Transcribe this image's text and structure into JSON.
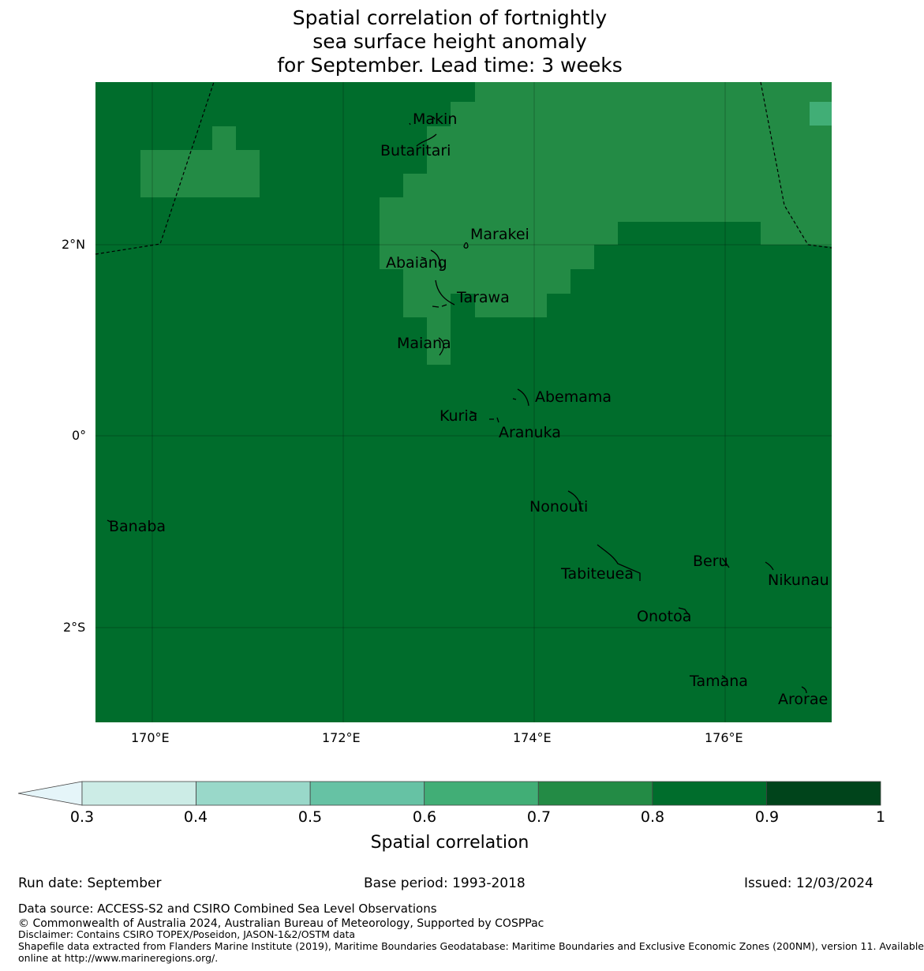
{
  "title_lines": [
    "Spatial correlation of fortnightly",
    "sea surface height anomaly",
    "for September. Lead time: 3 weeks"
  ],
  "axes": {
    "lat_labels": [
      "2°N",
      "0°",
      "2°S"
    ],
    "lon_labels": [
      "170°E",
      "172°E",
      "174°E",
      "176°E"
    ]
  },
  "places": [
    "Makin",
    "Butaritari",
    "Marakei",
    "Abaiang",
    "Tarawa",
    "Maiana",
    "Abemama",
    "Kuria",
    "Aranuka",
    "Nonouti",
    "Banaba",
    "Beru",
    "Tabiteuea",
    "Nikunau",
    "Onotoa",
    "Tamana",
    "Arorae"
  ],
  "colorbar": {
    "ticks": [
      "0.3",
      "0.4",
      "0.5",
      "0.6",
      "0.7",
      "0.8",
      "0.9",
      "1"
    ],
    "colors": [
      "#e5f5f9",
      "#ccece6",
      "#99d8c9",
      "#66c2a4",
      "#41ae76",
      "#238b45",
      "#006d2c",
      "#00441b"
    ],
    "label": "Spatial correlation"
  },
  "footer": {
    "run_date": "Run date: September",
    "base_period": "Base period: 1993-2018",
    "issued": "Issued: 12/03/2024",
    "data_source": "Data source: ACCESS-S2 and CSIRO Combined Sea Level Observations",
    "copyright": "© Commonwealth of Australia 2024, Australian Bureau of Meteorology, Supported by COSPPac",
    "disclaimer": "Disclaimer: Contains CSIRO TOPEX/Poseidon, JASON-1&2/OSTM data",
    "shapefile_1": "Shapefile data extracted from Flanders Marine Institute (2019), Maritime Boundaries Geodatabase: Maritime Boundaries and Exclusive Economic Zones (200NM), version 11. Available",
    "shapefile_2": "online at http://www.marineregions.org/."
  }
}
